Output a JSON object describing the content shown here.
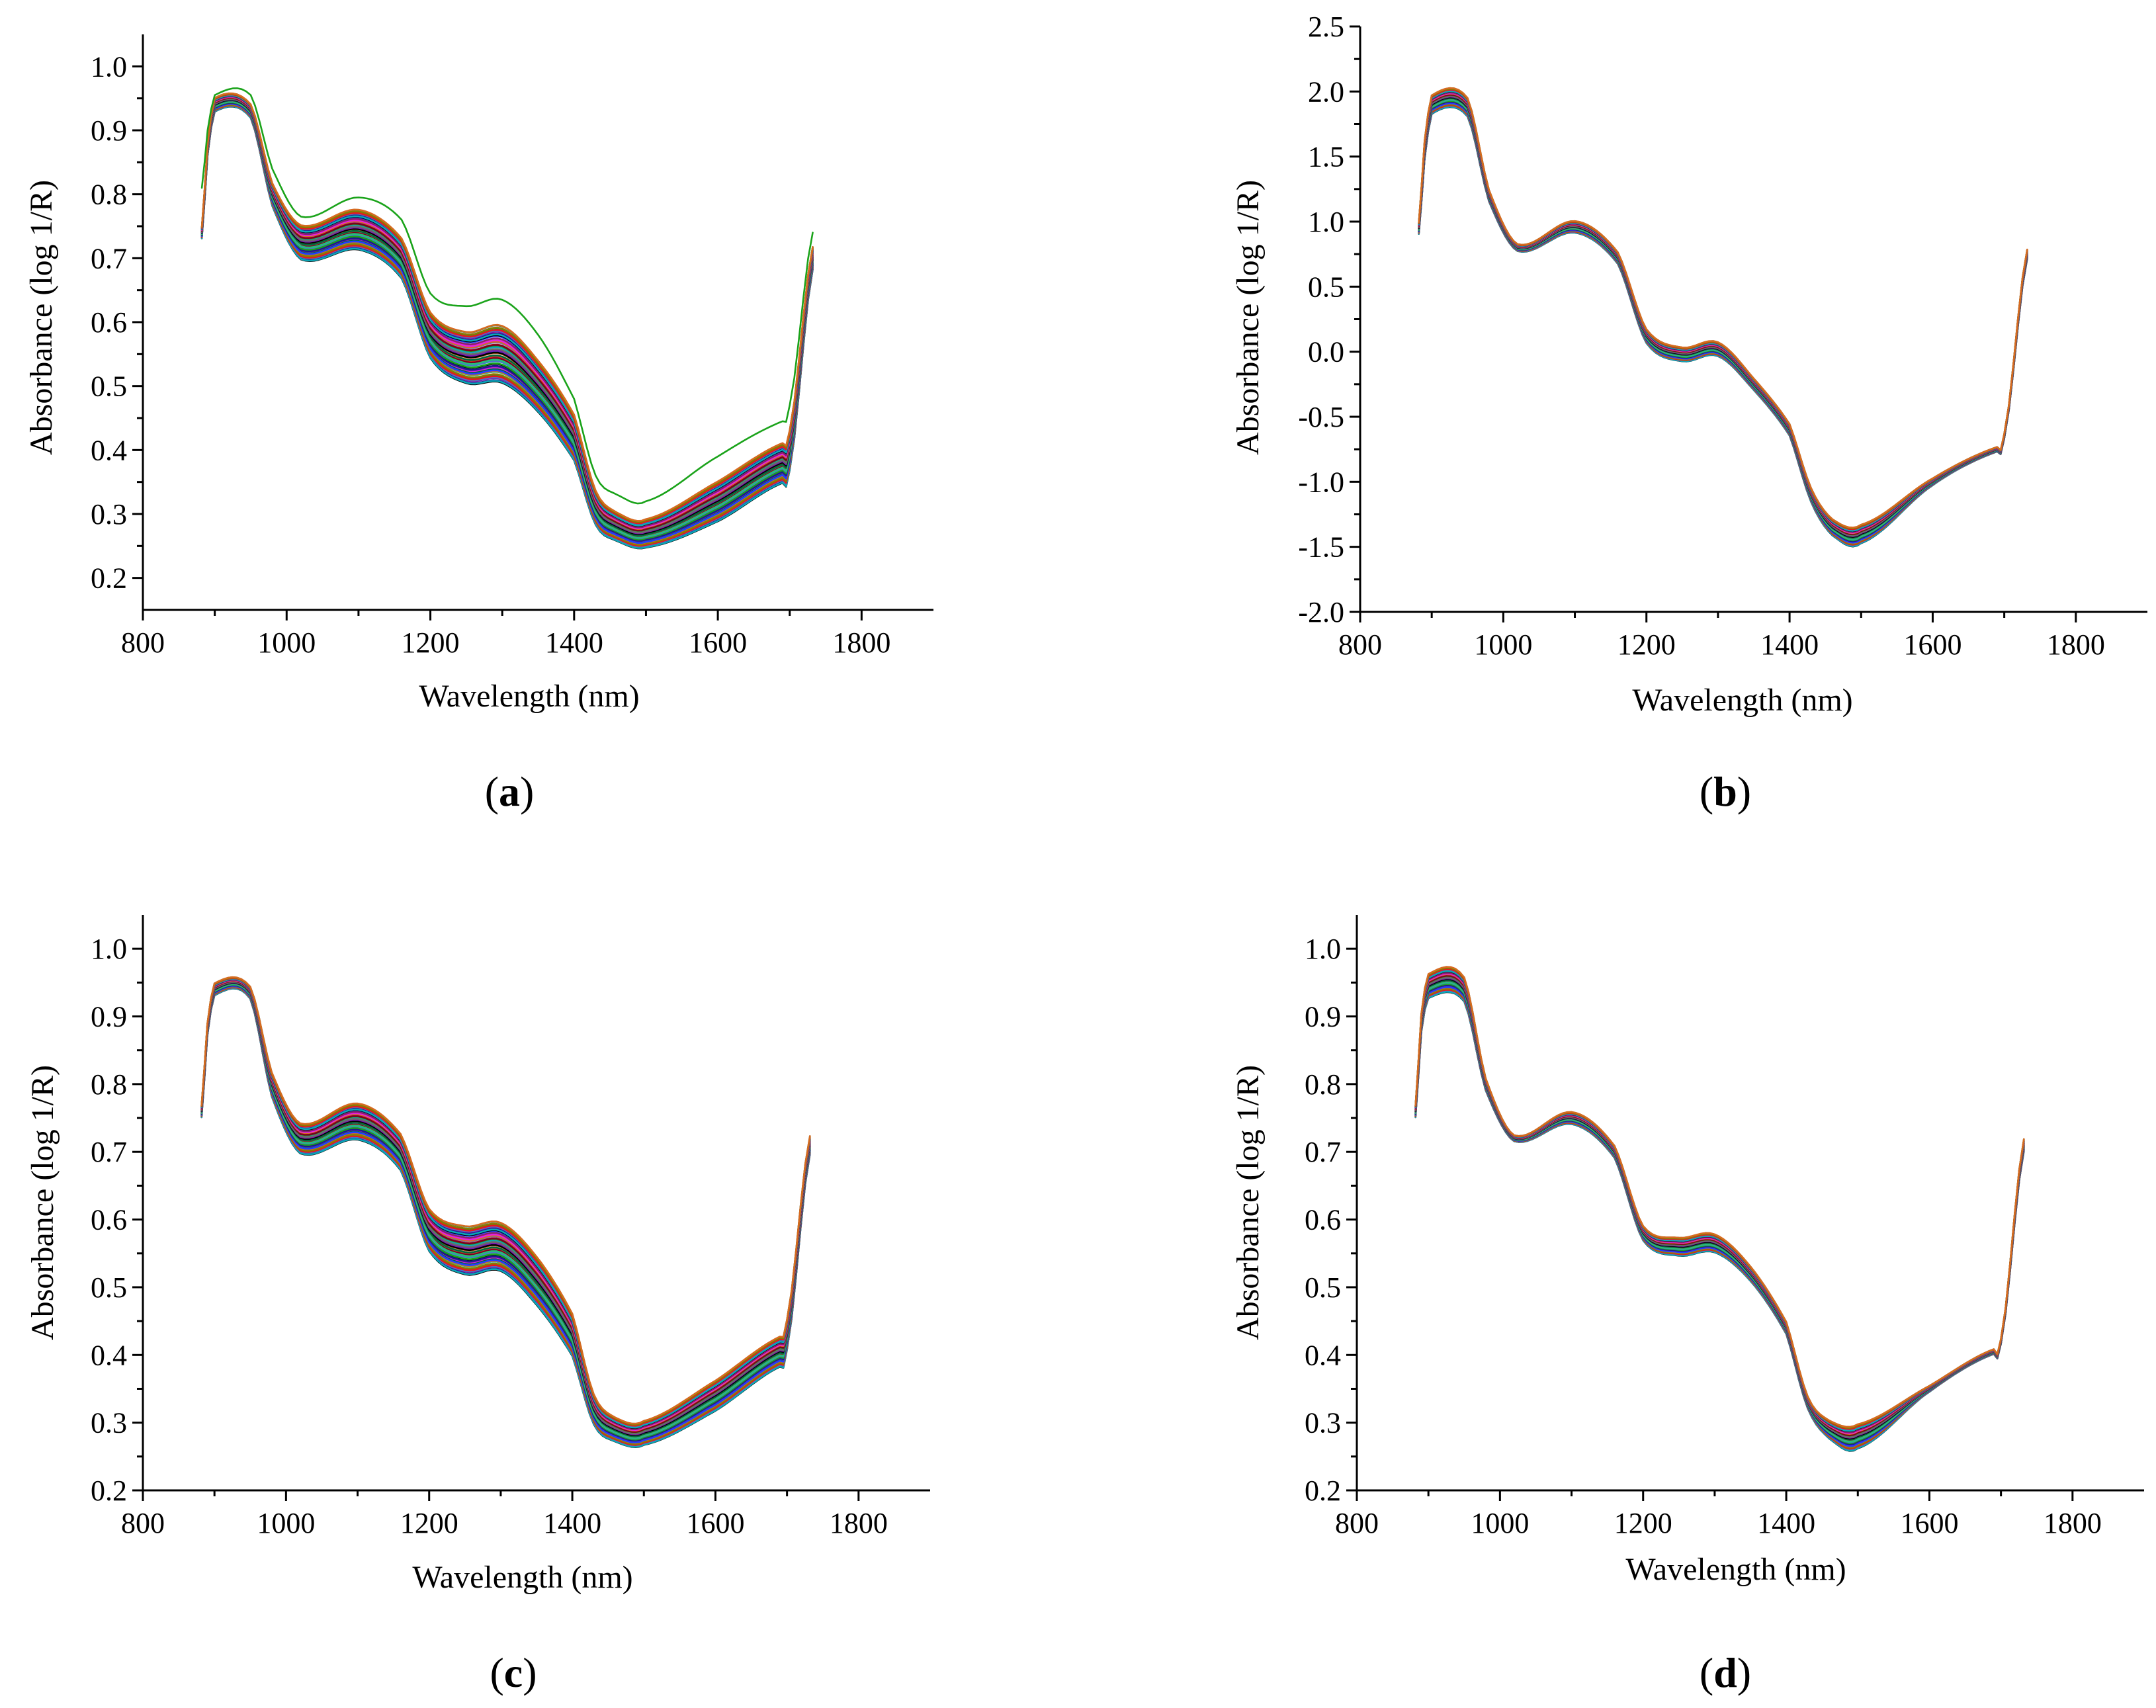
{
  "figure": {
    "caption_parts": [
      {
        "open": "(",
        "letter": "a",
        "close": ")"
      },
      {
        "open": "(",
        "letter": "b",
        "close": ")"
      },
      {
        "open": "(",
        "letter": "c",
        "close": ")"
      },
      {
        "open": "(",
        "letter": "d",
        "close": ")"
      }
    ]
  },
  "colors": {
    "series_palette": [
      "#000000",
      "#e8141e",
      "#1f3fff",
      "#1aa31a",
      "#e61ee6",
      "#0aa8b8",
      "#8a7a00",
      "#7a1ab0",
      "#7a0020",
      "#8a1f6a",
      "#4a7ac8",
      "#006a3a",
      "#6a6a6a",
      "#d86a20",
      "#1b1b8a",
      "#22c07a"
    ]
  },
  "chart_data": [
    {
      "type": "line",
      "panel": "a",
      "xlabel": "Wavelength (nm)",
      "ylabel": "Absorbance (log 1/R)",
      "xlim": [
        800,
        1900
      ],
      "ylim": [
        0.15,
        1.05
      ],
      "xticks": [
        800,
        1000,
        1200,
        1400,
        1600,
        1800
      ],
      "yticks": [
        0.2,
        0.3,
        0.4,
        0.5,
        0.6,
        0.7,
        0.8,
        0.9,
        1.0
      ],
      "ytick_labels": [
        "0.2",
        "0.3",
        "0.4",
        "0.5",
        "0.6",
        "0.7",
        "0.8",
        "0.9",
        "1.0"
      ],
      "series_count": 60,
      "wavelength_nm": [
        882,
        890,
        900,
        950,
        980,
        1020,
        1100,
        1160,
        1200,
        1250,
        1300,
        1350,
        1400,
        1430,
        1460,
        1500,
        1600,
        1690,
        1700,
        1732
      ],
      "mean_spectrum": [
        0.74,
        0.87,
        0.94,
        0.93,
        0.8,
        0.725,
        0.745,
        0.7,
        0.58,
        0.545,
        0.55,
        0.5,
        0.42,
        0.31,
        0.28,
        0.27,
        0.32,
        0.38,
        0.4,
        0.7
      ],
      "spread": [
        0.01,
        0.01,
        0.012,
        0.012,
        0.02,
        0.03,
        0.035,
        0.035,
        0.04,
        0.045,
        0.05,
        0.045,
        0.04,
        0.03,
        0.025,
        0.025,
        0.035,
        0.035,
        0.035,
        0.02
      ],
      "outlier_spectrum": [
        0.81,
        0.9,
        0.955,
        0.955,
        0.84,
        0.765,
        0.795,
        0.76,
        0.645,
        0.625,
        0.635,
        0.58,
        0.48,
        0.36,
        0.33,
        0.32,
        0.39,
        0.445,
        0.47,
        0.74
      ]
    },
    {
      "type": "line",
      "panel": "b",
      "xlabel": "Wavelength (nm)",
      "ylabel": "Absorbance (log 1/R)",
      "xlim": [
        800,
        1900
      ],
      "ylim": [
        -2.0,
        2.5
      ],
      "xticks": [
        800,
        1000,
        1200,
        1400,
        1600,
        1800
      ],
      "yticks": [
        -2.0,
        -1.5,
        -1.0,
        -0.5,
        0.0,
        0.5,
        1.0,
        1.5,
        2.0,
        2.5
      ],
      "ytick_labels": [
        "-2.0",
        "-1.5",
        "-1.0",
        "-0.5",
        "0.0",
        "0.5",
        "1.0",
        "1.5",
        "2.0",
        "2.5"
      ],
      "series_count": 60,
      "wavelength_nm": [
        882,
        890,
        900,
        950,
        980,
        1020,
        1100,
        1160,
        1200,
        1250,
        1300,
        1350,
        1400,
        1430,
        1460,
        1500,
        1600,
        1690,
        1700,
        1732
      ],
      "mean_spectrum": [
        0.95,
        1.55,
        1.9,
        1.88,
        1.2,
        0.8,
        0.96,
        0.72,
        0.12,
        -0.02,
        0.02,
        -0.25,
        -0.6,
        -1.1,
        -1.35,
        -1.4,
        -1.0,
        -0.75,
        -0.65,
        0.75
      ],
      "spread": [
        0.05,
        0.08,
        0.08,
        0.08,
        0.05,
        0.03,
        0.05,
        0.05,
        0.06,
        0.06,
        0.06,
        0.05,
        0.05,
        0.06,
        0.07,
        0.08,
        0.03,
        0.02,
        0.02,
        0.04
      ]
    },
    {
      "type": "line",
      "panel": "c",
      "xlabel": "Wavelength (nm)",
      "ylabel": "Absorbance (log 1/R)",
      "xlim": [
        800,
        1900
      ],
      "ylim": [
        0.2,
        1.05
      ],
      "xticks": [
        800,
        1000,
        1200,
        1400,
        1600,
        1800
      ],
      "yticks": [
        0.2,
        0.3,
        0.4,
        0.5,
        0.6,
        0.7,
        0.8,
        0.9,
        1.0
      ],
      "ytick_labels": [
        "0.2",
        "0.3",
        "0.4",
        "0.5",
        "0.6",
        "0.7",
        "0.8",
        "0.9",
        "1.0"
      ],
      "series_count": 60,
      "wavelength_nm": [
        882,
        890,
        900,
        950,
        980,
        1020,
        1100,
        1160,
        1200,
        1250,
        1300,
        1350,
        1400,
        1430,
        1460,
        1500,
        1600,
        1690,
        1700,
        1732
      ],
      "mean_spectrum": [
        0.76,
        0.88,
        0.94,
        0.935,
        0.8,
        0.72,
        0.745,
        0.7,
        0.585,
        0.555,
        0.56,
        0.51,
        0.43,
        0.32,
        0.29,
        0.285,
        0.34,
        0.405,
        0.43,
        0.71
      ],
      "spread": [
        0.01,
        0.01,
        0.01,
        0.01,
        0.02,
        0.025,
        0.03,
        0.03,
        0.035,
        0.04,
        0.04,
        0.04,
        0.035,
        0.025,
        0.02,
        0.02,
        0.025,
        0.025,
        0.025,
        0.015
      ]
    },
    {
      "type": "line",
      "panel": "d",
      "xlabel": "Wavelength (nm)",
      "ylabel": "Absorbance (log 1/R)",
      "xlim": [
        800,
        1900
      ],
      "ylim": [
        0.2,
        1.05
      ],
      "xticks": [
        800,
        1000,
        1200,
        1400,
        1600,
        1800
      ],
      "yticks": [
        0.2,
        0.3,
        0.4,
        0.5,
        0.6,
        0.7,
        0.8,
        0.9,
        1.0
      ],
      "ytick_labels": [
        "0.2",
        "0.3",
        "0.4",
        "0.5",
        "0.6",
        "0.7",
        "0.8",
        "0.9",
        "1.0"
      ],
      "series_count": 60,
      "wavelength_nm": [
        882,
        890,
        900,
        950,
        980,
        1020,
        1100,
        1160,
        1200,
        1250,
        1300,
        1350,
        1400,
        1430,
        1460,
        1500,
        1600,
        1690,
        1700,
        1732
      ],
      "mean_spectrum": [
        0.76,
        0.89,
        0.945,
        0.94,
        0.8,
        0.72,
        0.75,
        0.7,
        0.58,
        0.56,
        0.565,
        0.52,
        0.44,
        0.33,
        0.29,
        0.28,
        0.35,
        0.405,
        0.42,
        0.71
      ],
      "spread": [
        0.01,
        0.015,
        0.02,
        0.02,
        0.01,
        0.005,
        0.01,
        0.01,
        0.012,
        0.015,
        0.015,
        0.012,
        0.01,
        0.01,
        0.015,
        0.02,
        0.005,
        0.004,
        0.004,
        0.01
      ]
    }
  ]
}
